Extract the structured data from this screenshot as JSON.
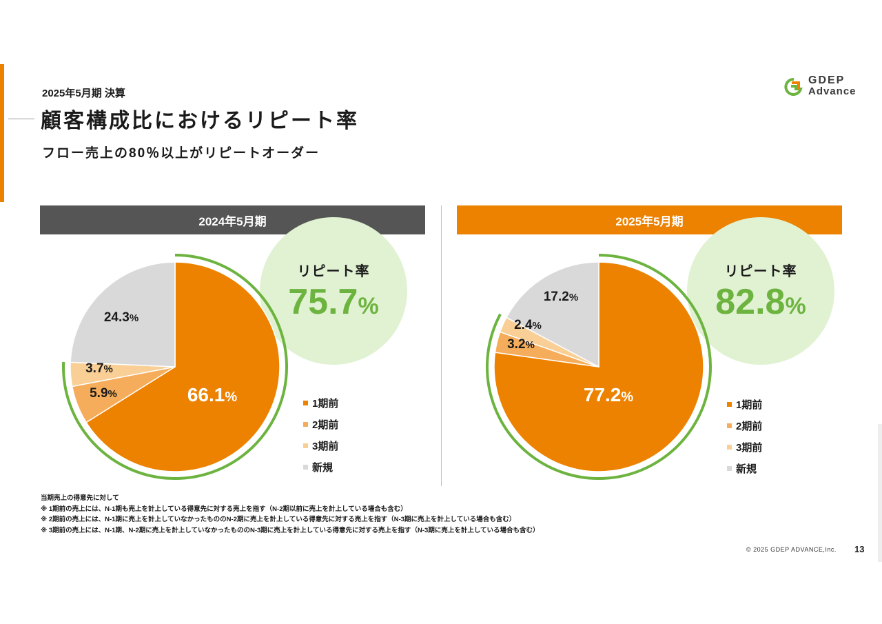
{
  "header": {
    "sub": "2025年5月期 決算",
    "title": "顧客構成比におけるリピート率",
    "subtitle": "フロー売上の80％以上がリピートオーダー"
  },
  "logo": {
    "line1": "GDEP",
    "line2": "Advance"
  },
  "colors": {
    "accent": "#ec8200",
    "gray_header": "#555555",
    "green": "#6db33f",
    "green_bg": "#e1f2d3"
  },
  "chart_data": [
    {
      "type": "pie",
      "title": "2024年5月期",
      "repeat_label": "リピート率",
      "repeat_value": "75.7",
      "repeat_unit": "%",
      "slices": [
        {
          "name": "1期前",
          "value": 66.1,
          "label": "66.1",
          "color": "#ec8200"
        },
        {
          "name": "2期前",
          "value": 5.9,
          "label": "5.9",
          "color": "#f5ad5b"
        },
        {
          "name": "3期前",
          "value": 3.7,
          "label": "3.7",
          "color": "#f9cf96"
        },
        {
          "name": "新規",
          "value": 24.3,
          "label": "24.3",
          "color": "#d9d9d9"
        }
      ],
      "legend": [
        "1期前",
        "2期前",
        "3期前",
        "新規"
      ]
    },
    {
      "type": "pie",
      "title": "2025年5月期",
      "repeat_label": "リピート率",
      "repeat_value": "82.8",
      "repeat_unit": "%",
      "slices": [
        {
          "name": "1期前",
          "value": 77.2,
          "label": "77.2",
          "color": "#ec8200"
        },
        {
          "name": "2期前",
          "value": 3.2,
          "label": "3.2",
          "color": "#f5ad5b"
        },
        {
          "name": "3期前",
          "value": 2.4,
          "label": "2.4",
          "color": "#f9cf96"
        },
        {
          "name": "新規",
          "value": 17.2,
          "label": "17.2",
          "color": "#d9d9d9"
        }
      ],
      "legend": [
        "1期前",
        "2期前",
        "3期前",
        "新規"
      ]
    }
  ],
  "notes": [
    "当期売上の得意先に対して",
    "※ 1期前の売上には、N-1期も売上を計上している得意先に対する売上を指す（N-2期以前に売上を計上している場合も含む）",
    "※ 2期前の売上には、N-1期に売上を計上していなかったもののN-2期に売上を計上している得意先に対する売上を指す（N-3期に売上を計上している場合も含む）",
    "※ 3期前の売上には、N-1期、N-2期に売上を計上していなかったもののN-3期に売上を計上している得意先に対する売上を指す（N-3期に売上を計上している場合も含む）"
  ],
  "footer": {
    "copyright": "© 2025 GDEP ADVANCE,Inc.",
    "page": "13"
  }
}
